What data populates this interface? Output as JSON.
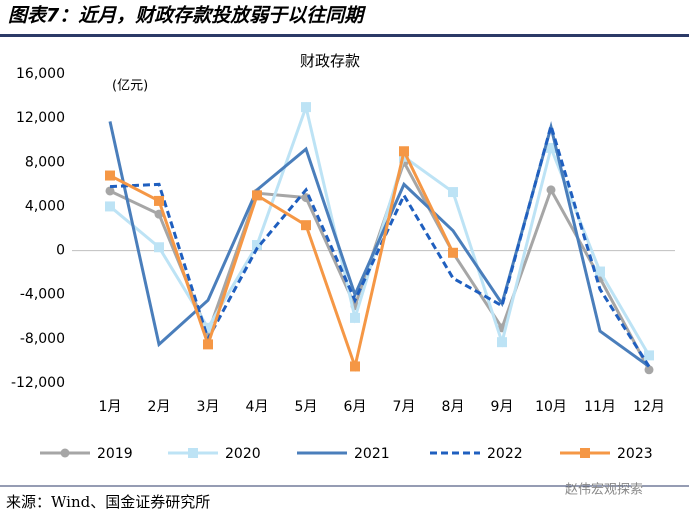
{
  "header": {
    "title": "图表7：近月，财政存款投放弱于以往同期"
  },
  "chart_data": {
    "type": "line",
    "title": "财政存款",
    "unit": "(亿元)",
    "categories": [
      "1月",
      "2月",
      "3月",
      "4月",
      "5月",
      "6月",
      "7月",
      "8月",
      "9月",
      "10月",
      "11月",
      "12月"
    ],
    "ylim": [
      -12000,
      16000
    ],
    "yticks": [
      {
        "value": -12000,
        "label": "-12,000"
      },
      {
        "value": -8000,
        "label": "-8,000"
      },
      {
        "value": -4000,
        "label": "-4,000"
      },
      0,
      {
        "value": 4000,
        "label": "4,000"
      },
      {
        "value": 8000,
        "label": "8,000"
      },
      {
        "value": 12000,
        "label": "12,000"
      },
      {
        "value": 16000,
        "label": "16,000"
      }
    ],
    "series": [
      {
        "name": "2019",
        "color": "#a6a6a6",
        "marker": "circle",
        "dash": false,
        "values": [
          5400,
          3300,
          -7500,
          5200,
          4800,
          -5000,
          8000,
          -200,
          -7000,
          5500,
          -2500,
          -10800
        ]
      },
      {
        "name": "2020",
        "color": "#bde3f5",
        "marker": "square",
        "dash": false,
        "values": [
          4000,
          300,
          -7000,
          500,
          13000,
          -6100,
          8500,
          5300,
          -8300,
          9300,
          -1900,
          -9500
        ]
      },
      {
        "name": "2021",
        "color": "#4a7ebb",
        "marker": "none",
        "dash": false,
        "values": [
          11700,
          -8500,
          -4500,
          5500,
          9200,
          -4000,
          6000,
          1800,
          -4800,
          11200,
          -7300,
          -10500
        ]
      },
      {
        "name": "2022",
        "color": "#1f5fbf",
        "marker": "none",
        "dash": true,
        "values": [
          5800,
          6000,
          -8000,
          200,
          5500,
          -4500,
          5000,
          -2500,
          -5000,
          11300,
          -3500,
          -10500
        ]
      },
      {
        "name": "2023",
        "color": "#f59745",
        "marker": "square",
        "dash": false,
        "values": [
          6800,
          4500,
          -8500,
          5000,
          2300,
          -10500,
          9000,
          -200,
          null,
          null,
          null,
          null
        ]
      }
    ]
  },
  "footer": {
    "source": "来源：Wind、国金证券研究所",
    "watermark": "赵伟宏观探索"
  }
}
